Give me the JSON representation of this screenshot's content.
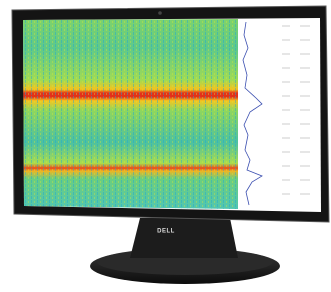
{
  "logo": "DELL"
}
